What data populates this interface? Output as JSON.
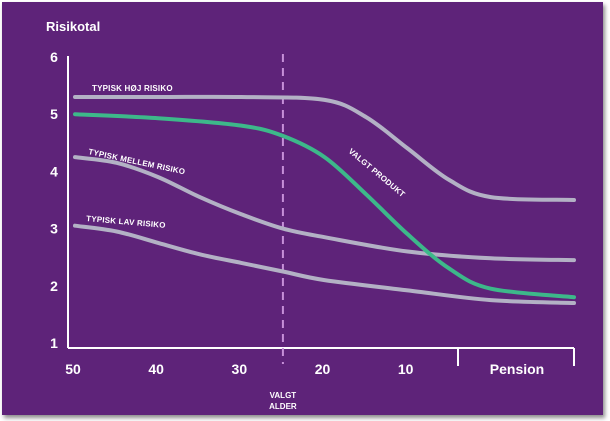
{
  "chart_data": {
    "type": "line",
    "ylabel": "Risikotal",
    "y_ticks": [
      "1",
      "2",
      "3",
      "4",
      "5",
      "6"
    ],
    "ylim": [
      1,
      6
    ],
    "x_ticks": [
      "50",
      "40",
      "30",
      "20",
      "10"
    ],
    "x_extra_label": "Pension",
    "xlim": [
      50,
      -10
    ],
    "marker": {
      "x": 25,
      "label_lines": [
        "VALGT",
        "ALDER"
      ]
    },
    "series": [
      {
        "name": "TYPISK HØJ RISIKO",
        "color": "#b3b1c5",
        "points": [
          [
            50,
            5.3
          ],
          [
            40,
            5.3
          ],
          [
            30,
            5.3
          ],
          [
            20,
            5.25
          ],
          [
            15,
            4.95
          ],
          [
            10,
            4.4
          ],
          [
            5,
            3.85
          ],
          [
            0,
            3.55
          ],
          [
            -10,
            3.5
          ]
        ]
      },
      {
        "name": "VALGT PRODUKT",
        "color": "#3db88a",
        "points": [
          [
            50,
            5.0
          ],
          [
            40,
            4.93
          ],
          [
            30,
            4.8
          ],
          [
            25,
            4.62
          ],
          [
            20,
            4.25
          ],
          [
            15,
            3.6
          ],
          [
            10,
            2.9
          ],
          [
            5,
            2.3
          ],
          [
            0,
            1.95
          ],
          [
            -10,
            1.8
          ]
        ]
      },
      {
        "name": "TYPISK MELLEM RISIKO",
        "color": "#b3b1c5",
        "points": [
          [
            50,
            4.25
          ],
          [
            45,
            4.15
          ],
          [
            40,
            3.9
          ],
          [
            35,
            3.55
          ],
          [
            30,
            3.25
          ],
          [
            25,
            3.0
          ],
          [
            20,
            2.85
          ],
          [
            10,
            2.6
          ],
          [
            0,
            2.48
          ],
          [
            -10,
            2.45
          ]
        ]
      },
      {
        "name": "TYPISK LAV RISIKO",
        "color": "#b3b1c5",
        "points": [
          [
            50,
            3.05
          ],
          [
            45,
            2.95
          ],
          [
            40,
            2.75
          ],
          [
            35,
            2.55
          ],
          [
            30,
            2.4
          ],
          [
            25,
            2.25
          ],
          [
            20,
            2.1
          ],
          [
            10,
            1.92
          ],
          [
            0,
            1.75
          ],
          [
            -10,
            1.7
          ]
        ]
      }
    ],
    "grid": false,
    "legend": "inline labels on curves"
  }
}
